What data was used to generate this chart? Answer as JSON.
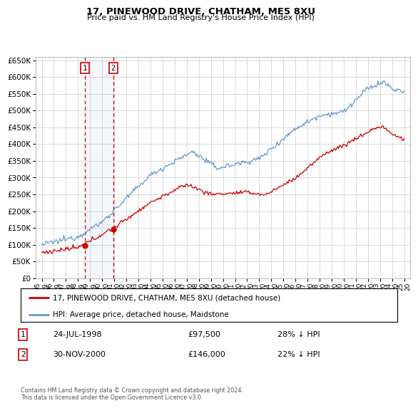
{
  "title": "17, PINEWOOD DRIVE, CHATHAM, ME5 8XU",
  "subtitle": "Price paid vs. HM Land Registry's House Price Index (HPI)",
  "ylim": [
    0,
    660000
  ],
  "yticks": [
    0,
    50000,
    100000,
    150000,
    200000,
    250000,
    300000,
    350000,
    400000,
    450000,
    500000,
    550000,
    600000,
    650000
  ],
  "hpi_color": "#6699cc",
  "price_color": "#cc0000",
  "marker1_date": 1998.56,
  "marker1_price": 97500,
  "marker1_label": "24-JUL-1998",
  "marker1_value": "£97,500",
  "marker1_hpi": "28% ↓ HPI",
  "marker2_date": 2000.92,
  "marker2_price": 146000,
  "marker2_label": "30-NOV-2000",
  "marker2_value": "£146,000",
  "marker2_hpi": "22% ↓ HPI",
  "legend_line1": "17, PINEWOOD DRIVE, CHATHAM, ME5 8XU (detached house)",
  "legend_line2": "HPI: Average price, detached house, Maidstone",
  "footer": "Contains HM Land Registry data © Crown copyright and database right 2024.\nThis data is licensed under the Open Government Licence v3.0.",
  "xmin": 1994.5,
  "xmax": 2025.5,
  "background_color": "#ffffff",
  "grid_color": "#cccccc"
}
